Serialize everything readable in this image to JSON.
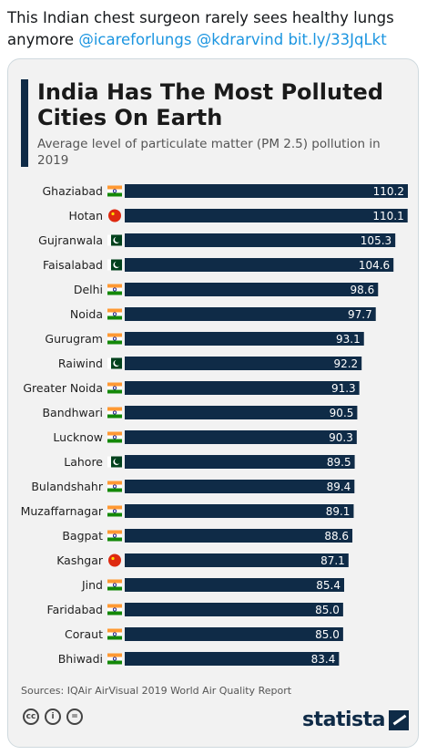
{
  "tweet": {
    "text": "This Indian chest surgeon rarely sees healthy lungs anymore",
    "links": [
      "@icareforlungs",
      "@kdrarvind",
      "bit.ly/33JqLkt"
    ]
  },
  "card": {
    "source": "Sources: IQAir AirVisual 2019 World Air Quality Report",
    "brand": "statista",
    "license_icons": [
      "cc-icon",
      "attribution-icon",
      "no-derivatives-icon"
    ],
    "license_glyphs": [
      "cc",
      "i",
      "="
    ]
  },
  "colors": {
    "bar": "#0f2b47",
    "accent": "#0f2b47",
    "link": "#1b95e0"
  },
  "chart_data": {
    "type": "bar",
    "orientation": "horizontal",
    "title": "India Has The Most Polluted Cities On Earth",
    "subtitle": "Average level of particulate matter (PM 2.5) pollution in 2019",
    "categories": [
      "Ghaziabad",
      "Hotan",
      "Gujranwala",
      "Faisalabad",
      "Delhi",
      "Noida",
      "Gurugram",
      "Raiwind",
      "Greater Noida",
      "Bandhwari",
      "Lucknow",
      "Lahore",
      "Bulandshahr",
      "Muzaffarnagar",
      "Bagpat",
      "Kashgar",
      "Jind",
      "Faridabad",
      "Coraut",
      "Bhiwadi"
    ],
    "flags": [
      "india",
      "china",
      "pakistan",
      "pakistan",
      "india",
      "india",
      "india",
      "pakistan",
      "india",
      "india",
      "india",
      "pakistan",
      "india",
      "india",
      "india",
      "china",
      "india",
      "india",
      "india",
      "india"
    ],
    "values": [
      110.2,
      110.1,
      105.3,
      104.6,
      98.6,
      97.7,
      93.1,
      92.2,
      91.3,
      90.5,
      90.3,
      89.5,
      89.4,
      89.1,
      88.6,
      87.1,
      85.4,
      85.0,
      85.0,
      83.4
    ],
    "value_labels": [
      "110.2",
      "110.1",
      "105.3",
      "104.6",
      "98.6",
      "97.7",
      "93.1",
      "92.2",
      "91.3",
      "90.5",
      "90.3",
      "89.5",
      "89.4",
      "89.1",
      "88.6",
      "87.1",
      "85.4",
      "85.0",
      "85.0",
      "83.4"
    ],
    "xlim": [
      0,
      110.2
    ],
    "grid": false,
    "legend": "none"
  }
}
